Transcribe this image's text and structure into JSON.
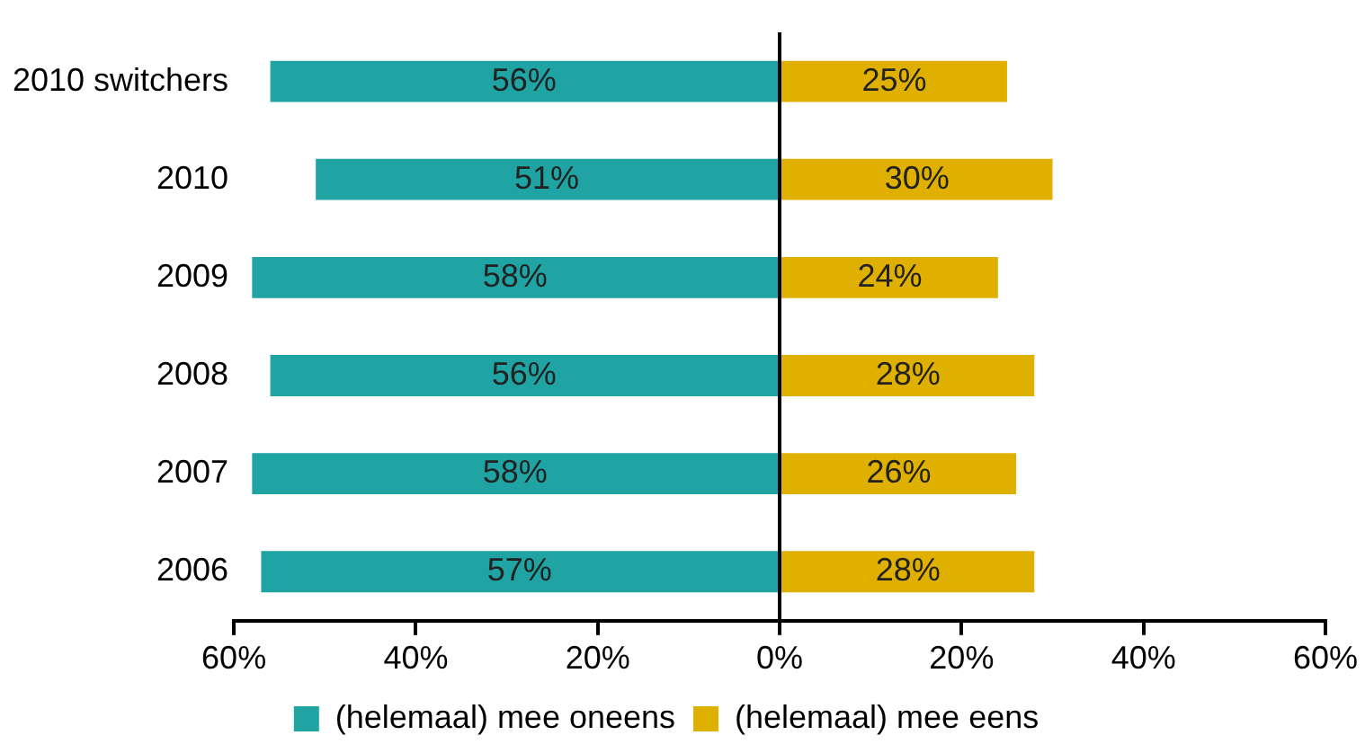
{
  "chart_data": {
    "type": "bar",
    "orientation": "horizontal",
    "categories": [
      "2010 switchers",
      "2010",
      "2009",
      "2008",
      "2007",
      "2006"
    ],
    "series": [
      {
        "name": "(helemaal) mee oneens",
        "color": "#1fa3a3",
        "values": [
          56,
          51,
          58,
          56,
          58,
          57
        ],
        "base": [
          -56,
          -51,
          -58,
          -56,
          -58,
          -57
        ],
        "value_labels": [
          "56%",
          "51%",
          "58%",
          "56%",
          "58%",
          "57%"
        ]
      },
      {
        "name": "(helemaal) mee eens",
        "color": "#e0b000",
        "values": [
          25,
          30,
          24,
          28,
          26,
          28
        ],
        "base": [
          0,
          0,
          0,
          0,
          0,
          0
        ],
        "value_labels": [
          "25%",
          "30%",
          "24%",
          "28%",
          "26%",
          "28%"
        ]
      }
    ],
    "xlim": [
      -60,
      60
    ],
    "xticks": [
      {
        "value": -60,
        "label": "60%"
      },
      {
        "value": -40,
        "label": "40%"
      },
      {
        "value": -20,
        "label": "20%"
      },
      {
        "value": 0,
        "label": "0%"
      },
      {
        "value": 20,
        "label": "20%"
      },
      {
        "value": 40,
        "label": "40%"
      },
      {
        "value": 60,
        "label": "60%"
      }
    ],
    "legend": "bottom"
  }
}
